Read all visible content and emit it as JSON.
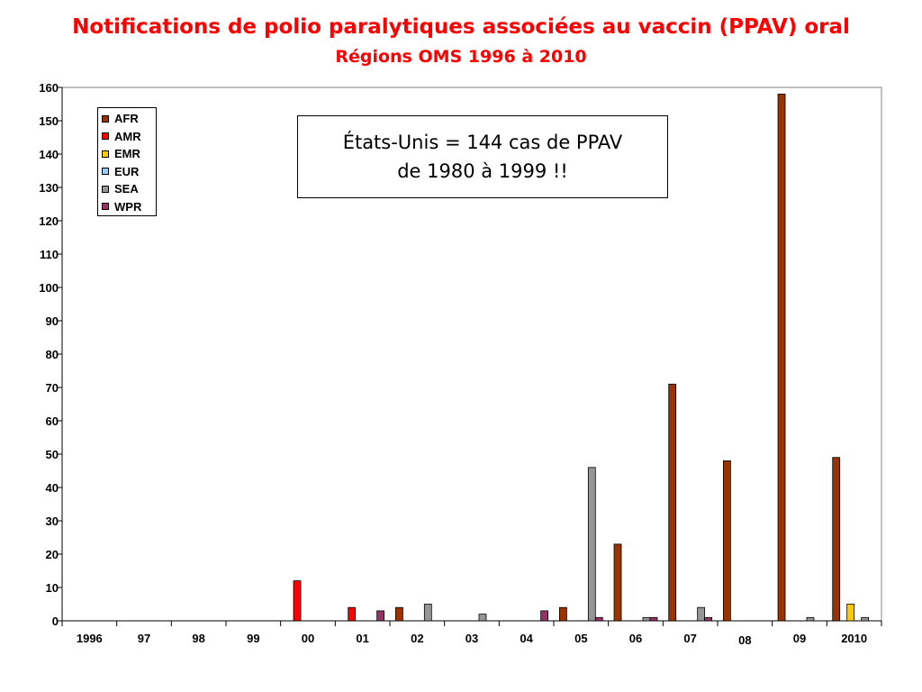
{
  "title": "Notifications de polio paralytiques associées au vaccin (PPAV) oral",
  "subtitle": "Régions OMS 1996 à 2010",
  "note_line1": "États-Unis = 144 cas de PPAV",
  "note_line2": "de 1980 à 1999 !!",
  "chart_data": {
    "type": "bar",
    "categories": [
      "1996",
      "97",
      "98",
      "99",
      "00",
      "01",
      "02",
      "03",
      "04",
      "05",
      "06",
      "07",
      "08",
      "09",
      "2010"
    ],
    "series": [
      {
        "name": "AFR",
        "color": "#993300",
        "values": [
          0,
          0,
          0,
          0,
          0,
          0,
          4,
          0,
          0,
          4,
          23,
          71,
          48,
          158,
          49
        ]
      },
      {
        "name": "AMR",
        "color": "#ff0000",
        "values": [
          0,
          0,
          0,
          0,
          12,
          4,
          0,
          0,
          0,
          0,
          0,
          0,
          0,
          0,
          0
        ]
      },
      {
        "name": "EMR",
        "color": "#ffcc00",
        "values": [
          0,
          0,
          0,
          0,
          0,
          0,
          0,
          0,
          0,
          0,
          0,
          0,
          0,
          0,
          5
        ]
      },
      {
        "name": "EUR",
        "color": "#99ccff",
        "values": [
          0,
          0,
          0,
          0,
          0,
          0,
          0,
          0,
          0,
          0,
          0,
          0,
          0,
          0,
          0
        ]
      },
      {
        "name": "SEA",
        "color": "#969696",
        "values": [
          0,
          0,
          0,
          0,
          0,
          0,
          5,
          2,
          0,
          46,
          1,
          4,
          0,
          1,
          1
        ]
      },
      {
        "name": "WPR",
        "color": "#993366",
        "values": [
          0,
          0,
          0,
          0,
          0,
          3,
          0,
          0,
          3,
          1,
          1,
          1,
          0,
          0,
          0
        ]
      }
    ],
    "ylim": [
      0,
      160
    ],
    "yticks": [
      0,
      10,
      20,
      30,
      40,
      50,
      60,
      70,
      80,
      90,
      100,
      110,
      120,
      130,
      140,
      150,
      160
    ],
    "grid": false,
    "legend_position": "top-left"
  }
}
